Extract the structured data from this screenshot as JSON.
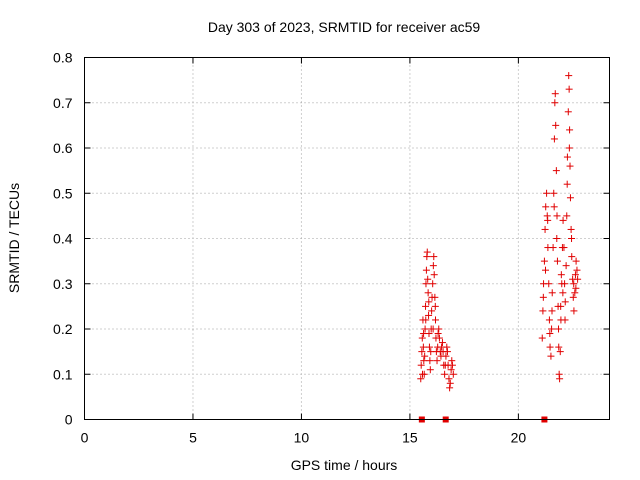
{
  "chart_data": {
    "type": "scatter",
    "title": "Day 303 of 2023, SRMTID for receiver ac59",
    "xlabel": "GPS time / hours",
    "ylabel": "SRMTID / TECUs",
    "xlim": [
      0,
      24.2
    ],
    "ylim": [
      0,
      0.8
    ],
    "xticks": [
      0,
      5,
      10,
      15,
      20
    ],
    "yticks": [
      0,
      0.1,
      0.2,
      0.3,
      0.4,
      0.5,
      0.6,
      0.7,
      0.8
    ],
    "xtick_labels": [
      "0",
      "5",
      "10",
      "15",
      "20"
    ],
    "ytick_labels": [
      "0",
      "0.1",
      "0.2",
      "0.3",
      "0.4",
      "0.5",
      "0.6",
      "0.7",
      "0.8"
    ],
    "grid": true,
    "legend": "none",
    "marker_color": "#e00000",
    "series": [
      {
        "marker": "plus",
        "points": [
          [
            15.5,
            0.09
          ],
          [
            15.52,
            0.12
          ],
          [
            15.55,
            0.15
          ],
          [
            15.57,
            0.18
          ],
          [
            15.6,
            0.22
          ],
          [
            15.62,
            0.16
          ],
          [
            15.64,
            0.13
          ],
          [
            15.66,
            0.1
          ],
          [
            15.68,
            0.14
          ],
          [
            15.7,
            0.2
          ],
          [
            15.72,
            0.25
          ],
          [
            15.74,
            0.3
          ],
          [
            15.76,
            0.33
          ],
          [
            15.78,
            0.36
          ],
          [
            15.8,
            0.37
          ],
          [
            15.82,
            0.31
          ],
          [
            15.84,
            0.28
          ],
          [
            15.86,
            0.23
          ],
          [
            15.88,
            0.19
          ],
          [
            15.9,
            0.16
          ],
          [
            15.92,
            0.13
          ],
          [
            15.94,
            0.11
          ],
          [
            15.96,
            0.15
          ],
          [
            15.98,
            0.2
          ],
          [
            16.0,
            0.24
          ],
          [
            16.02,
            0.27
          ],
          [
            16.05,
            0.3
          ],
          [
            16.08,
            0.34
          ],
          [
            16.1,
            0.36
          ],
          [
            16.12,
            0.32
          ],
          [
            16.15,
            0.27
          ],
          [
            16.18,
            0.22
          ],
          [
            16.2,
            0.18
          ],
          [
            16.22,
            0.15
          ],
          [
            16.25,
            0.13
          ],
          [
            16.28,
            0.16
          ],
          [
            16.3,
            0.19
          ],
          [
            16.33,
            0.2
          ],
          [
            16.36,
            0.18
          ],
          [
            16.4,
            0.15
          ],
          [
            16.43,
            0.14
          ],
          [
            16.46,
            0.16
          ],
          [
            16.5,
            0.17
          ],
          [
            16.53,
            0.15
          ],
          [
            16.56,
            0.12
          ],
          [
            16.6,
            0.1
          ],
          [
            16.63,
            0.12
          ],
          [
            16.66,
            0.14
          ],
          [
            16.7,
            0.16
          ],
          [
            16.73,
            0.15
          ],
          [
            16.76,
            0.12
          ],
          [
            16.8,
            0.09
          ],
          [
            16.83,
            0.07
          ],
          [
            16.86,
            0.08
          ],
          [
            16.9,
            0.11
          ],
          [
            16.93,
            0.13
          ],
          [
            16.96,
            0.12
          ],
          [
            17.0,
            0.1
          ],
          [
            15.58,
            0.1
          ],
          [
            15.63,
            0.19
          ],
          [
            15.73,
            0.22
          ],
          [
            15.87,
            0.26
          ],
          [
            16.07,
            0.2
          ],
          [
            16.17,
            0.25
          ],
          [
            21.1,
            0.18
          ],
          [
            21.13,
            0.24
          ],
          [
            21.16,
            0.3
          ],
          [
            21.2,
            0.35
          ],
          [
            21.23,
            0.42
          ],
          [
            21.26,
            0.47
          ],
          [
            21.3,
            0.5
          ],
          [
            21.33,
            0.45
          ],
          [
            21.36,
            0.38
          ],
          [
            21.4,
            0.3
          ],
          [
            21.43,
            0.22
          ],
          [
            21.46,
            0.16
          ],
          [
            21.5,
            0.14
          ],
          [
            21.53,
            0.2
          ],
          [
            21.56,
            0.28
          ],
          [
            21.6,
            0.38
          ],
          [
            21.63,
            0.5
          ],
          [
            21.66,
            0.62
          ],
          [
            21.68,
            0.7
          ],
          [
            21.7,
            0.72
          ],
          [
            21.72,
            0.65
          ],
          [
            21.75,
            0.55
          ],
          [
            21.78,
            0.45
          ],
          [
            21.8,
            0.35
          ],
          [
            21.83,
            0.25
          ],
          [
            21.86,
            0.16
          ],
          [
            21.88,
            0.1
          ],
          [
            21.9,
            0.09
          ],
          [
            21.93,
            0.15
          ],
          [
            21.96,
            0.22
          ],
          [
            22.0,
            0.3
          ],
          [
            22.03,
            0.38
          ],
          [
            22.06,
            0.44
          ],
          [
            22.1,
            0.38
          ],
          [
            22.13,
            0.3
          ],
          [
            22.16,
            0.26
          ],
          [
            22.2,
            0.34
          ],
          [
            22.23,
            0.45
          ],
          [
            22.26,
            0.58
          ],
          [
            22.3,
            0.68
          ],
          [
            22.32,
            0.76
          ],
          [
            22.34,
            0.73
          ],
          [
            22.36,
            0.64
          ],
          [
            22.38,
            0.56
          ],
          [
            22.4,
            0.49
          ],
          [
            22.43,
            0.42
          ],
          [
            22.46,
            0.36
          ],
          [
            22.5,
            0.31
          ],
          [
            22.53,
            0.27
          ],
          [
            22.56,
            0.24
          ],
          [
            22.6,
            0.28
          ],
          [
            22.63,
            0.32
          ],
          [
            22.66,
            0.35
          ],
          [
            22.7,
            0.33
          ],
          [
            22.73,
            0.31
          ],
          [
            21.15,
            0.27
          ],
          [
            21.25,
            0.33
          ],
          [
            21.35,
            0.44
          ],
          [
            21.45,
            0.19
          ],
          [
            21.55,
            0.24
          ],
          [
            21.65,
            0.47
          ],
          [
            21.77,
            0.4
          ],
          [
            21.85,
            0.2
          ],
          [
            21.95,
            0.25
          ],
          [
            22.05,
            0.28
          ],
          [
            22.15,
            0.22
          ],
          [
            22.25,
            0.52
          ],
          [
            22.35,
            0.6
          ],
          [
            22.45,
            0.4
          ],
          [
            22.55,
            0.3
          ],
          [
            22.65,
            0.29
          ],
          [
            21.98,
            0.32
          ]
        ]
      },
      {
        "marker": "square",
        "points": [
          [
            15.55,
            0
          ],
          [
            16.65,
            0
          ],
          [
            21.2,
            0
          ]
        ]
      }
    ]
  }
}
